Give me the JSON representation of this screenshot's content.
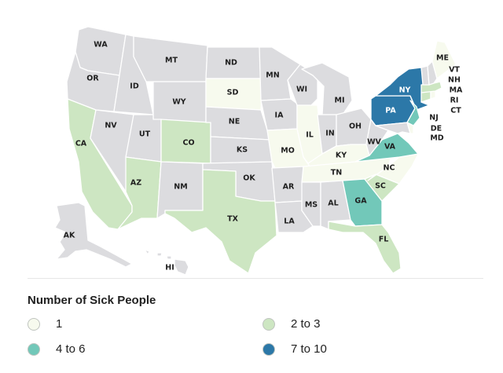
{
  "colors": {
    "none": "#dcdcdf",
    "c1": "#f7faee",
    "c2": "#cde6c2",
    "c3": "#72c8b9",
    "c4": "#2c78a8"
  },
  "legend": {
    "title": "Number of Sick People",
    "items": [
      {
        "label": "1",
        "color": "#f7faee"
      },
      {
        "label": "2 to 3",
        "color": "#cde6c2"
      },
      {
        "label": "4 to 6",
        "color": "#72c8b9"
      },
      {
        "label": "7 to 10",
        "color": "#2c78a8"
      }
    ]
  },
  "states": {
    "WA": {
      "label": "WA",
      "category": "none"
    },
    "OR": {
      "label": "OR",
      "category": "none"
    },
    "CA": {
      "label": "CA",
      "category": "2 to 3"
    },
    "ID": {
      "label": "ID",
      "category": "none"
    },
    "NV": {
      "label": "NV",
      "category": "none"
    },
    "MT": {
      "label": "MT",
      "category": "none"
    },
    "WY": {
      "label": "WY",
      "category": "none"
    },
    "UT": {
      "label": "UT",
      "category": "none"
    },
    "AZ": {
      "label": "AZ",
      "category": "2 to 3"
    },
    "CO": {
      "label": "CO",
      "category": "2 to 3"
    },
    "NM": {
      "label": "NM",
      "category": "none"
    },
    "ND": {
      "label": "ND",
      "category": "none"
    },
    "SD": {
      "label": "SD",
      "category": "1"
    },
    "NE": {
      "label": "NE",
      "category": "none"
    },
    "KS": {
      "label": "KS",
      "category": "none"
    },
    "OK": {
      "label": "OK",
      "category": "none"
    },
    "TX": {
      "label": "TX",
      "category": "2 to 3"
    },
    "MN": {
      "label": "MN",
      "category": "none"
    },
    "IA": {
      "label": "IA",
      "category": "none"
    },
    "MO": {
      "label": "MO",
      "category": "1"
    },
    "AR": {
      "label": "AR",
      "category": "none"
    },
    "LA": {
      "label": "LA",
      "category": "none"
    },
    "WI": {
      "label": "WI",
      "category": "none"
    },
    "IL": {
      "label": "IL",
      "category": "1"
    },
    "MI": {
      "label": "MI",
      "category": "none"
    },
    "IN": {
      "label": "IN",
      "category": "none"
    },
    "OH": {
      "label": "OH",
      "category": "none"
    },
    "KY": {
      "label": "KY",
      "category": "1"
    },
    "TN": {
      "label": "TN",
      "category": "1"
    },
    "MS": {
      "label": "MS",
      "category": "none"
    },
    "AL": {
      "label": "AL",
      "category": "none"
    },
    "GA": {
      "label": "GA",
      "category": "4 to 6"
    },
    "FL": {
      "label": "FL",
      "category": "2 to 3"
    },
    "SC": {
      "label": "SC",
      "category": "2 to 3"
    },
    "NC": {
      "label": "NC",
      "category": "1"
    },
    "VA": {
      "label": "VA",
      "category": "4 to 6"
    },
    "WV": {
      "label": "WV",
      "category": "none"
    },
    "PA": {
      "label": "PA",
      "category": "7 to 10"
    },
    "NY": {
      "label": "NY",
      "category": "7 to 10"
    },
    "NJ": {
      "label": "NJ",
      "category": "4 to 6"
    },
    "DE": {
      "label": "DE",
      "category": "1"
    },
    "MD": {
      "label": "MD",
      "category": "none"
    },
    "CT": {
      "label": "CT",
      "category": "2 to 3"
    },
    "RI": {
      "label": "RI",
      "category": "1"
    },
    "MA": {
      "label": "MA",
      "category": "2 to 3"
    },
    "VT": {
      "label": "VT",
      "category": "none"
    },
    "NH": {
      "label": "NH",
      "category": "none"
    },
    "ME": {
      "label": "ME",
      "category": "1"
    },
    "AK": {
      "label": "AK",
      "category": "none"
    },
    "HI": {
      "label": "HI",
      "category": "none"
    }
  }
}
